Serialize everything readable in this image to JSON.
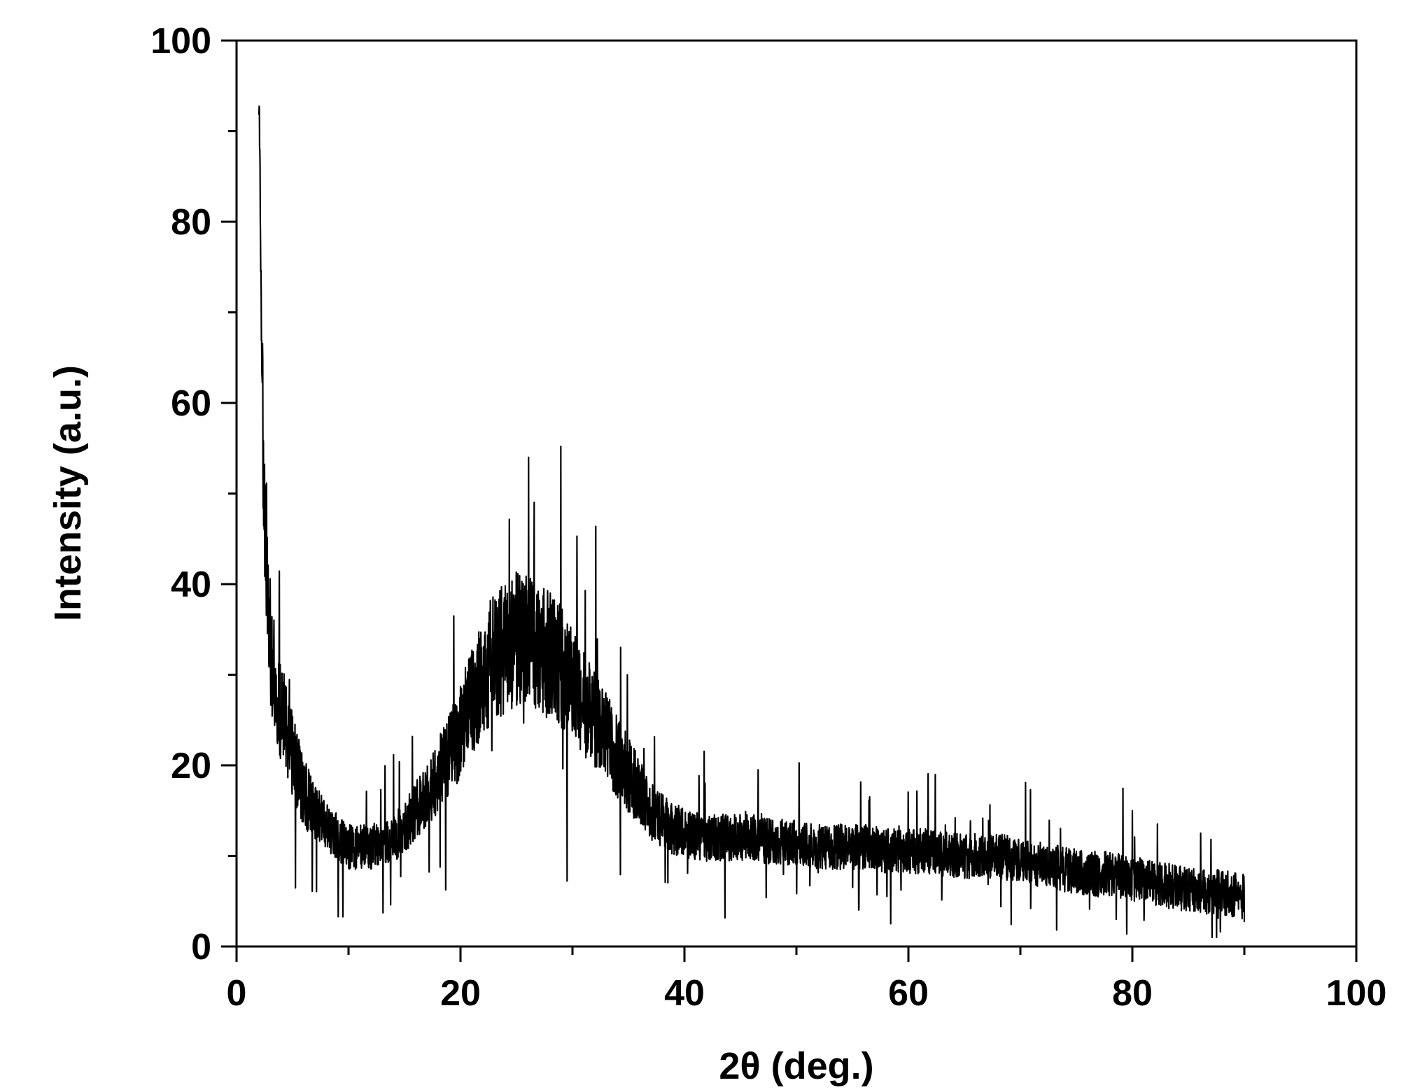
{
  "chart_data": {
    "type": "line",
    "title": "",
    "xlabel": "2θ (deg.)",
    "ylabel": "Intensity (a.u.)",
    "xlim": [
      0,
      100
    ],
    "ylim": [
      0,
      100
    ],
    "x_ticks": [
      0,
      20,
      40,
      60,
      80,
      100
    ],
    "y_ticks": [
      0,
      20,
      40,
      60,
      80,
      100
    ],
    "x_tick_labels": [
      "0",
      "20",
      "40",
      "60",
      "80",
      "100"
    ],
    "y_tick_labels": [
      "0",
      "20",
      "40",
      "60",
      "80",
      "100"
    ],
    "grid": false,
    "legend": "none",
    "line_color": "#000000",
    "series": [
      {
        "x": [
          2,
          2.2,
          2.4,
          2.6,
          2.8,
          3,
          3.5,
          4,
          4.5,
          5,
          5.5,
          6,
          7,
          8,
          9,
          10,
          11,
          12,
          13,
          14,
          15,
          16,
          17,
          18,
          19,
          20,
          21,
          22,
          23,
          24,
          25,
          26,
          27,
          28,
          29,
          30,
          31,
          32,
          33,
          34,
          35,
          36,
          37,
          38,
          39,
          40,
          42,
          44,
          46,
          48,
          50,
          52,
          54,
          56,
          58,
          60,
          62,
          64,
          66,
          68,
          70,
          72,
          74,
          76,
          78,
          80,
          82,
          84,
          86,
          88,
          90
        ],
        "y": [
          95,
          72,
          55,
          45,
          38,
          34,
          29,
          26,
          24,
          21,
          19,
          17,
          15,
          13,
          12,
          11,
          11,
          11,
          11.5,
          12,
          13,
          15,
          17,
          19,
          21,
          24,
          27,
          30,
          32,
          33,
          34,
          34,
          33,
          32,
          31,
          29,
          27,
          25,
          23,
          21,
          19,
          17,
          15,
          14,
          13,
          12.5,
          12,
          12,
          12,
          11.5,
          11.5,
          11,
          11,
          11,
          10.5,
          10.5,
          10.5,
          10,
          10,
          10,
          9.5,
          9,
          8.5,
          8,
          8,
          7.5,
          7,
          6.5,
          6,
          6,
          5.5
        ]
      }
    ]
  }
}
